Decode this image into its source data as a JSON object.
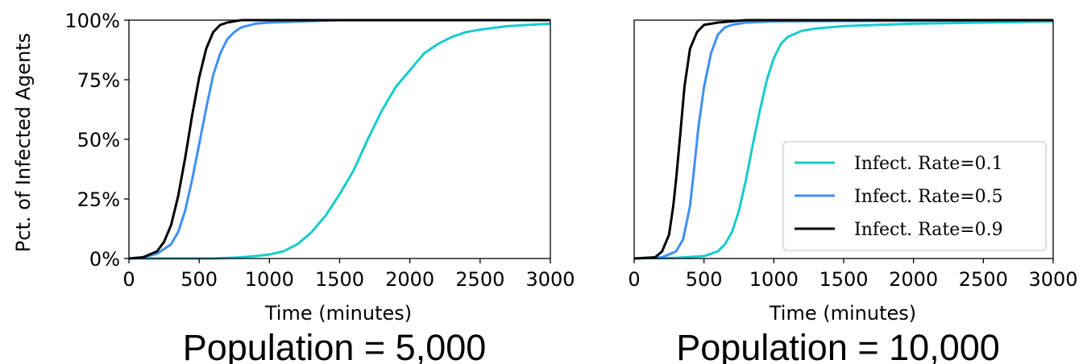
{
  "colors": {
    "rate_0_1": "#17cbcb",
    "rate_0_5": "#3f8ff5",
    "rate_0_9": "#000000"
  },
  "legend": {
    "position": "bottom-right",
    "panel": 1
  },
  "chart_data": [
    {
      "type": "line",
      "caption": "Population = 5,000",
      "xlabel": "Time (minutes)",
      "ylabel": "Pct. of Infected Agents",
      "xlim": [
        0,
        3000
      ],
      "ylim": [
        0,
        100
      ],
      "x_ticks": [
        "0",
        "500",
        "1000",
        "1500",
        "2000",
        "2500",
        "3000"
      ],
      "y_ticks": [
        "0%",
        "25%",
        "50%",
        "75%",
        "100%"
      ],
      "grid": false,
      "series": [
        {
          "name": "Infect. Rate=0.1",
          "color_key": "rate_0_1",
          "points": [
            [
              0,
              0
            ],
            [
              300,
              0
            ],
            [
              600,
              0
            ],
            [
              800,
              0.5
            ],
            [
              900,
              1
            ],
            [
              1000,
              1.7
            ],
            [
              1100,
              3
            ],
            [
              1200,
              6
            ],
            [
              1300,
              11
            ],
            [
              1400,
              18
            ],
            [
              1500,
              27
            ],
            [
              1600,
              37
            ],
            [
              1700,
              50
            ],
            [
              1800,
              62
            ],
            [
              1900,
              72
            ],
            [
              2000,
              79
            ],
            [
              2100,
              86
            ],
            [
              2200,
              90
            ],
            [
              2300,
              93
            ],
            [
              2400,
              95
            ],
            [
              2500,
              96
            ],
            [
              2700,
              97.5
            ],
            [
              3000,
              98.5
            ]
          ]
        },
        {
          "name": "Infect. Rate=0.5",
          "color_key": "rate_0_5",
          "points": [
            [
              0,
              0
            ],
            [
              100,
              0.5
            ],
            [
              200,
              2
            ],
            [
              300,
              6
            ],
            [
              350,
              11
            ],
            [
              400,
              20
            ],
            [
              450,
              33
            ],
            [
              500,
              48
            ],
            [
              550,
              63
            ],
            [
              600,
              77
            ],
            [
              650,
              86
            ],
            [
              700,
              92
            ],
            [
              750,
              95
            ],
            [
              800,
              97
            ],
            [
              900,
              98.5
            ],
            [
              1000,
              99
            ],
            [
              1500,
              100
            ],
            [
              3000,
              100
            ]
          ]
        },
        {
          "name": "Infect. Rate=0.9",
          "color_key": "rate_0_9",
          "points": [
            [
              0,
              0
            ],
            [
              100,
              0.5
            ],
            [
              200,
              3
            ],
            [
              250,
              7
            ],
            [
              300,
              14
            ],
            [
              350,
              26
            ],
            [
              400,
              42
            ],
            [
              450,
              60
            ],
            [
              500,
              76
            ],
            [
              550,
              88
            ],
            [
              600,
              95
            ],
            [
              650,
              98
            ],
            [
              700,
              99
            ],
            [
              800,
              100
            ],
            [
              3000,
              100
            ]
          ]
        }
      ]
    },
    {
      "type": "line",
      "caption": "Population = 10,000",
      "xlabel": "Time (minutes)",
      "xlim": [
        0,
        3000
      ],
      "ylim": [
        0,
        100
      ],
      "x_ticks": [
        "0",
        "500",
        "1000",
        "1500",
        "2000",
        "2500",
        "3000"
      ],
      "grid": false,
      "series": [
        {
          "name": "Infect. Rate=0.1",
          "color_key": "rate_0_1",
          "points": [
            [
              0,
              0
            ],
            [
              300,
              0.3
            ],
            [
              500,
              1
            ],
            [
              600,
              3
            ],
            [
              650,
              6
            ],
            [
              700,
              11
            ],
            [
              750,
              20
            ],
            [
              800,
              33
            ],
            [
              850,
              48
            ],
            [
              900,
              62
            ],
            [
              950,
              75
            ],
            [
              1000,
              84
            ],
            [
              1050,
              90
            ],
            [
              1100,
              93
            ],
            [
              1200,
              95.5
            ],
            [
              1300,
              96.5
            ],
            [
              1500,
              97.5
            ],
            [
              2000,
              98.5
            ],
            [
              3000,
              99.5
            ]
          ]
        },
        {
          "name": "Infect. Rate=0.5",
          "color_key": "rate_0_5",
          "points": [
            [
              0,
              0
            ],
            [
              200,
              0.5
            ],
            [
              300,
              3
            ],
            [
              350,
              8
            ],
            [
              400,
              22
            ],
            [
              430,
              38
            ],
            [
              460,
              55
            ],
            [
              500,
              72
            ],
            [
              550,
              86
            ],
            [
              600,
              94
            ],
            [
              650,
              97
            ],
            [
              700,
              98
            ],
            [
              800,
              99
            ],
            [
              1000,
              99.5
            ],
            [
              3000,
              100
            ]
          ]
        },
        {
          "name": "Infect. Rate=0.9",
          "color_key": "rate_0_9",
          "points": [
            [
              0,
              0
            ],
            [
              150,
              0.5
            ],
            [
              200,
              3
            ],
            [
              250,
              10
            ],
            [
              280,
              22
            ],
            [
              300,
              33
            ],
            [
              330,
              52
            ],
            [
              360,
              72
            ],
            [
              400,
              88
            ],
            [
              450,
              95
            ],
            [
              500,
              98
            ],
            [
              600,
              99
            ],
            [
              800,
              100
            ],
            [
              3000,
              100
            ]
          ]
        }
      ]
    }
  ]
}
